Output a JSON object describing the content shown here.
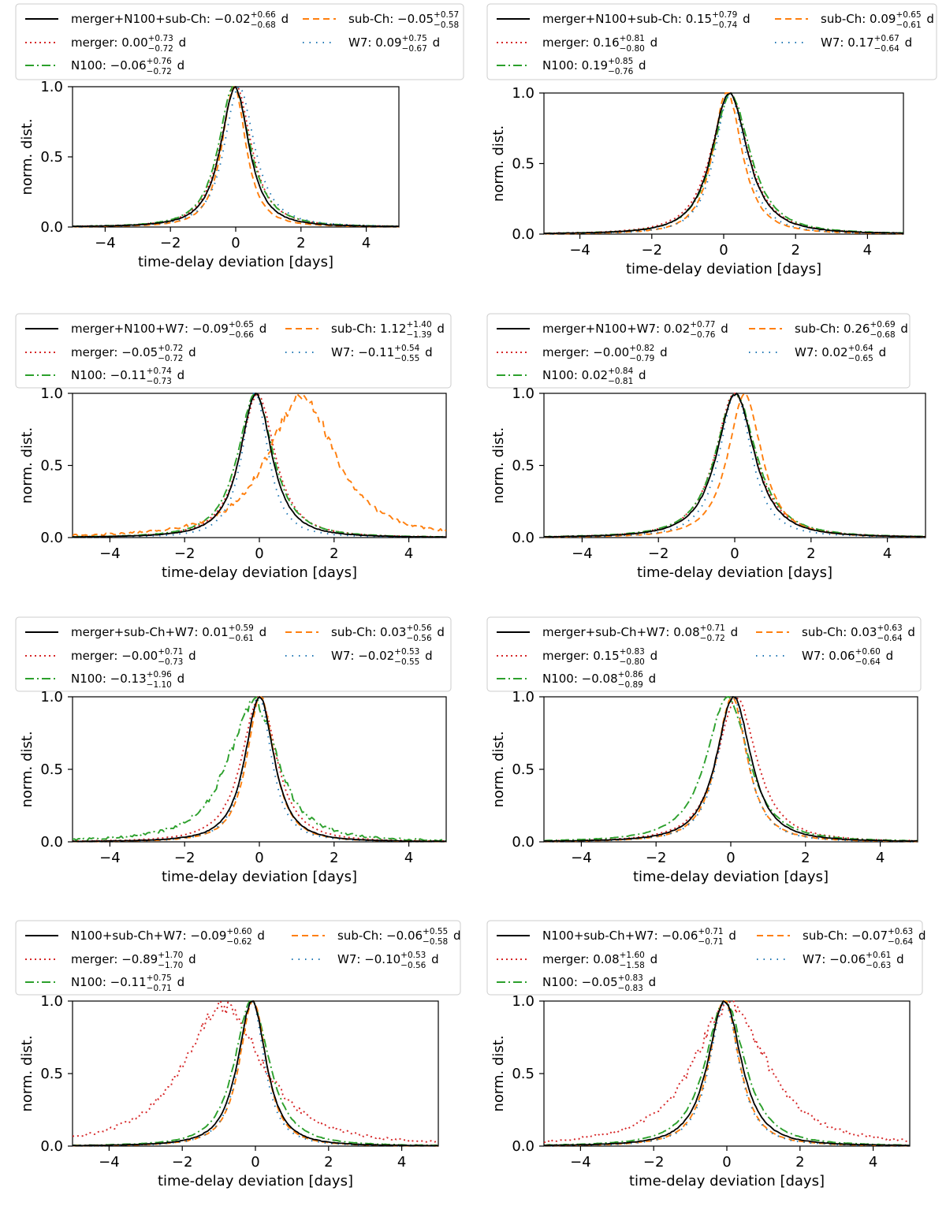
{
  "figure": {
    "xlabel": "time-delay deviation [days]",
    "ylabel": "norm. dist.",
    "x_ticks": [
      -4,
      -2,
      0,
      2,
      4
    ],
    "y_ticks": [
      "0.0",
      "0.5",
      "1.0"
    ],
    "colors": {
      "combined": "#000000",
      "merger": "#d62728",
      "N100": "#2ca02c",
      "sub-Ch": "#ff7f0e",
      "W7": "#1f77b4"
    }
  },
  "chart_data": [
    {
      "type": "line",
      "xlim": [
        -5,
        5
      ],
      "ylim": [
        0,
        1
      ],
      "xlabel": "time-delay deviation [days]",
      "ylabel": "norm. dist.",
      "legend": [
        {
          "key": "combined",
          "name": "merger+N100+sub-Ch",
          "label": "merger+N100+sub-Ch: −0.02",
          "sup": "+0.66",
          "sub": "−0.68",
          "unit": "d",
          "median": -0.02,
          "plus": 0.66,
          "minus": 0.68
        },
        {
          "key": "merger",
          "name": "merger",
          "label": "merger: 0.00",
          "sup": "+0.73",
          "sub": "−0.72",
          "unit": "d",
          "median": 0.0,
          "plus": 0.73,
          "minus": 0.72
        },
        {
          "key": "N100",
          "name": "N100",
          "label": "N100: −0.06",
          "sup": "+0.76",
          "sub": "−0.72",
          "unit": "d",
          "median": -0.06,
          "plus": 0.76,
          "minus": 0.72
        },
        {
          "key": "sub-Ch",
          "name": "sub-Ch",
          "label": "sub-Ch: −0.05",
          "sup": "+0.57",
          "sub": "−0.58",
          "unit": "",
          "median": -0.05,
          "plus": 0.57,
          "minus": 0.58
        },
        {
          "key": "W7",
          "name": "W7",
          "label": "W7: 0.09",
          "sup": "+0.75",
          "sub": "−0.67",
          "unit": "d",
          "median": 0.09,
          "plus": 0.75,
          "minus": 0.67
        }
      ]
    },
    {
      "type": "line",
      "xlim": [
        -5,
        5
      ],
      "ylim": [
        0,
        1
      ],
      "xlabel": "time-delay deviation [days]",
      "ylabel": "norm. dist.",
      "legend": [
        {
          "key": "combined",
          "name": "merger+N100+sub-Ch",
          "label": "merger+N100+sub-Ch: 0.15",
          "sup": "+0.79",
          "sub": "−0.74",
          "unit": "d",
          "median": 0.15,
          "plus": 0.79,
          "minus": 0.74
        },
        {
          "key": "merger",
          "name": "merger",
          "label": "merger: 0.16",
          "sup": "+0.81",
          "sub": "−0.80",
          "unit": "d",
          "median": 0.16,
          "plus": 0.81,
          "minus": 0.8
        },
        {
          "key": "N100",
          "name": "N100",
          "label": "N100: 0.19",
          "sup": "+0.85",
          "sub": "−0.76",
          "unit": "d",
          "median": 0.19,
          "plus": 0.85,
          "minus": 0.76
        },
        {
          "key": "sub-Ch",
          "name": "sub-Ch",
          "label": "sub-Ch: 0.09",
          "sup": "+0.65",
          "sub": "−0.61",
          "unit": "d",
          "median": 0.09,
          "plus": 0.65,
          "minus": 0.61
        },
        {
          "key": "W7",
          "name": "W7",
          "label": "W7: 0.17",
          "sup": "+0.67",
          "sub": "−0.64",
          "unit": "d",
          "median": 0.17,
          "plus": 0.67,
          "minus": 0.64
        }
      ]
    },
    {
      "type": "line",
      "xlim": [
        -5,
        5
      ],
      "ylim": [
        0,
        1
      ],
      "xlabel": "time-delay deviation [days]",
      "ylabel": "norm. dist.",
      "legend": [
        {
          "key": "combined",
          "name": "merger+N100+W7",
          "label": "merger+N100+W7: −0.09",
          "sup": "+0.65",
          "sub": "−0.66",
          "unit": "d",
          "median": -0.09,
          "plus": 0.65,
          "minus": 0.66
        },
        {
          "key": "merger",
          "name": "merger",
          "label": "merger: −0.05",
          "sup": "+0.72",
          "sub": "−0.72",
          "unit": "d",
          "median": -0.05,
          "plus": 0.72,
          "minus": 0.72
        },
        {
          "key": "N100",
          "name": "N100",
          "label": "N100: −0.11",
          "sup": "+0.74",
          "sub": "−0.73",
          "unit": "d",
          "median": -0.11,
          "plus": 0.74,
          "minus": 0.73
        },
        {
          "key": "sub-Ch",
          "name": "sub-Ch",
          "label": "sub-Ch: 1.12",
          "sup": "+1.40",
          "sub": "−1.39",
          "unit": "d",
          "median": 1.12,
          "plus": 1.4,
          "minus": 1.39
        },
        {
          "key": "W7",
          "name": "W7",
          "label": "W7: −0.11",
          "sup": "+0.54",
          "sub": "−0.55",
          "unit": "d",
          "median": -0.11,
          "plus": 0.54,
          "minus": 0.55
        }
      ]
    },
    {
      "type": "line",
      "xlim": [
        -5,
        5
      ],
      "ylim": [
        0,
        1
      ],
      "xlabel": "time-delay deviation [days]",
      "ylabel": "norm. dist.",
      "legend": [
        {
          "key": "combined",
          "name": "merger+N100+W7",
          "label": "merger+N100+W7: 0.02",
          "sup": "+0.77",
          "sub": "−0.76",
          "unit": "d",
          "median": 0.02,
          "plus": 0.77,
          "minus": 0.76
        },
        {
          "key": "merger",
          "name": "merger",
          "label": "merger: −0.00",
          "sup": "+0.82",
          "sub": "−0.79",
          "unit": "d",
          "median": -0.0,
          "plus": 0.82,
          "minus": 0.79
        },
        {
          "key": "N100",
          "name": "N100",
          "label": "N100: 0.02",
          "sup": "+0.84",
          "sub": "−0.81",
          "unit": "d",
          "median": 0.02,
          "plus": 0.84,
          "minus": 0.81
        },
        {
          "key": "sub-Ch",
          "name": "sub-Ch",
          "label": "sub-Ch: 0.26",
          "sup": "+0.69",
          "sub": "−0.68",
          "unit": "d",
          "median": 0.26,
          "plus": 0.69,
          "minus": 0.68
        },
        {
          "key": "W7",
          "name": "W7",
          "label": "W7: 0.02",
          "sup": "+0.64",
          "sub": "−0.65",
          "unit": "d",
          "median": 0.02,
          "plus": 0.64,
          "minus": 0.65
        }
      ]
    },
    {
      "type": "line",
      "xlim": [
        -5,
        5
      ],
      "ylim": [
        0,
        1
      ],
      "xlabel": "time-delay deviation [days]",
      "ylabel": "norm. dist.",
      "legend": [
        {
          "key": "combined",
          "name": "merger+sub-Ch+W7",
          "label": "merger+sub-Ch+W7: 0.01",
          "sup": "+0.59",
          "sub": "−0.61",
          "unit": "d",
          "median": 0.01,
          "plus": 0.59,
          "minus": 0.61
        },
        {
          "key": "merger",
          "name": "merger",
          "label": "merger: −0.00",
          "sup": "+0.71",
          "sub": "−0.73",
          "unit": "d",
          "median": -0.0,
          "plus": 0.71,
          "minus": 0.73
        },
        {
          "key": "N100",
          "name": "N100",
          "label": "N100: −0.13",
          "sup": "+0.96",
          "sub": "−1.10",
          "unit": "d",
          "median": -0.13,
          "plus": 0.96,
          "minus": 1.1
        },
        {
          "key": "sub-Ch",
          "name": "sub-Ch",
          "label": "sub-Ch: 0.03",
          "sup": "+0.56",
          "sub": "−0.56",
          "unit": "d",
          "median": 0.03,
          "plus": 0.56,
          "minus": 0.56
        },
        {
          "key": "W7",
          "name": "W7",
          "label": "W7: −0.02",
          "sup": "+0.53",
          "sub": "−0.55",
          "unit": "d",
          "median": -0.02,
          "plus": 0.53,
          "minus": 0.55
        }
      ]
    },
    {
      "type": "line",
      "xlim": [
        -5,
        5
      ],
      "ylim": [
        0,
        1
      ],
      "xlabel": "time-delay deviation [days]",
      "ylabel": "norm. dist.",
      "legend": [
        {
          "key": "combined",
          "name": "merger+sub-Ch+W7",
          "label": "merger+sub-Ch+W7: 0.08",
          "sup": "+0.71",
          "sub": "−0.72",
          "unit": "d",
          "median": 0.08,
          "plus": 0.71,
          "minus": 0.72
        },
        {
          "key": "merger",
          "name": "merger",
          "label": "merger: 0.15",
          "sup": "+0.83",
          "sub": "−0.80",
          "unit": "d",
          "median": 0.15,
          "plus": 0.83,
          "minus": 0.8
        },
        {
          "key": "N100",
          "name": "N100",
          "label": "N100: −0.08",
          "sup": "+0.86",
          "sub": "−0.89",
          "unit": "d",
          "median": -0.08,
          "plus": 0.86,
          "minus": 0.89
        },
        {
          "key": "sub-Ch",
          "name": "sub-Ch",
          "label": "sub-Ch: 0.03",
          "sup": "+0.63",
          "sub": "−0.64",
          "unit": "d",
          "median": 0.03,
          "plus": 0.63,
          "minus": 0.64
        },
        {
          "key": "W7",
          "name": "W7",
          "label": "W7: 0.06",
          "sup": "+0.60",
          "sub": "−0.64",
          "unit": "d",
          "median": 0.06,
          "plus": 0.6,
          "minus": 0.64
        }
      ]
    },
    {
      "type": "line",
      "xlim": [
        -5,
        5
      ],
      "ylim": [
        0,
        1
      ],
      "xlabel": "time-delay deviation [days]",
      "ylabel": "norm. dist.",
      "legend": [
        {
          "key": "combined",
          "name": "N100+sub-Ch+W7",
          "label": "N100+sub-Ch+W7: −0.09",
          "sup": "+0.60",
          "sub": "−0.62",
          "unit": "d",
          "median": -0.09,
          "plus": 0.6,
          "minus": 0.62
        },
        {
          "key": "merger",
          "name": "merger",
          "label": "merger: −0.89",
          "sup": "+1.70",
          "sub": "−1.70",
          "unit": "d",
          "median": -0.89,
          "plus": 1.7,
          "minus": 1.7
        },
        {
          "key": "N100",
          "name": "N100",
          "label": "N100: −0.11",
          "sup": "+0.75",
          "sub": "−0.71",
          "unit": "d",
          "median": -0.11,
          "plus": 0.75,
          "minus": 0.71
        },
        {
          "key": "sub-Ch",
          "name": "sub-Ch",
          "label": "sub-Ch: −0.06",
          "sup": "+0.55",
          "sub": "−0.58",
          "unit": "d",
          "median": -0.06,
          "plus": 0.55,
          "minus": 0.58
        },
        {
          "key": "W7",
          "name": "W7",
          "label": "W7: −0.10",
          "sup": "+0.53",
          "sub": "−0.56",
          "unit": "d",
          "median": -0.1,
          "plus": 0.53,
          "minus": 0.56
        }
      ]
    },
    {
      "type": "line",
      "xlim": [
        -5,
        5
      ],
      "ylim": [
        0,
        1
      ],
      "xlabel": "time-delay deviation [days]",
      "ylabel": "norm. dist.",
      "legend": [
        {
          "key": "combined",
          "name": "N100+sub-Ch+W7",
          "label": "N100+sub-Ch+W7: −0.06",
          "sup": "+0.71",
          "sub": "−0.71",
          "unit": "d",
          "median": -0.06,
          "plus": 0.71,
          "minus": 0.71
        },
        {
          "key": "merger",
          "name": "merger",
          "label": "merger: 0.08",
          "sup": "+1.60",
          "sub": "−1.58",
          "unit": "d",
          "median": 0.08,
          "plus": 1.6,
          "minus": 1.58
        },
        {
          "key": "N100",
          "name": "N100",
          "label": "N100: −0.05",
          "sup": "+0.83",
          "sub": "−0.83",
          "unit": "d",
          "median": -0.05,
          "plus": 0.83,
          "minus": 0.83
        },
        {
          "key": "sub-Ch",
          "name": "sub-Ch",
          "label": "sub-Ch: −0.07",
          "sup": "+0.63",
          "sub": "−0.64",
          "unit": "d",
          "median": -0.07,
          "plus": 0.63,
          "minus": 0.64
        },
        {
          "key": "W7",
          "name": "W7",
          "label": "W7: −0.06",
          "sup": "+0.61",
          "sub": "−0.63",
          "unit": "d",
          "median": -0.06,
          "plus": 0.61,
          "minus": 0.63
        }
      ]
    }
  ]
}
